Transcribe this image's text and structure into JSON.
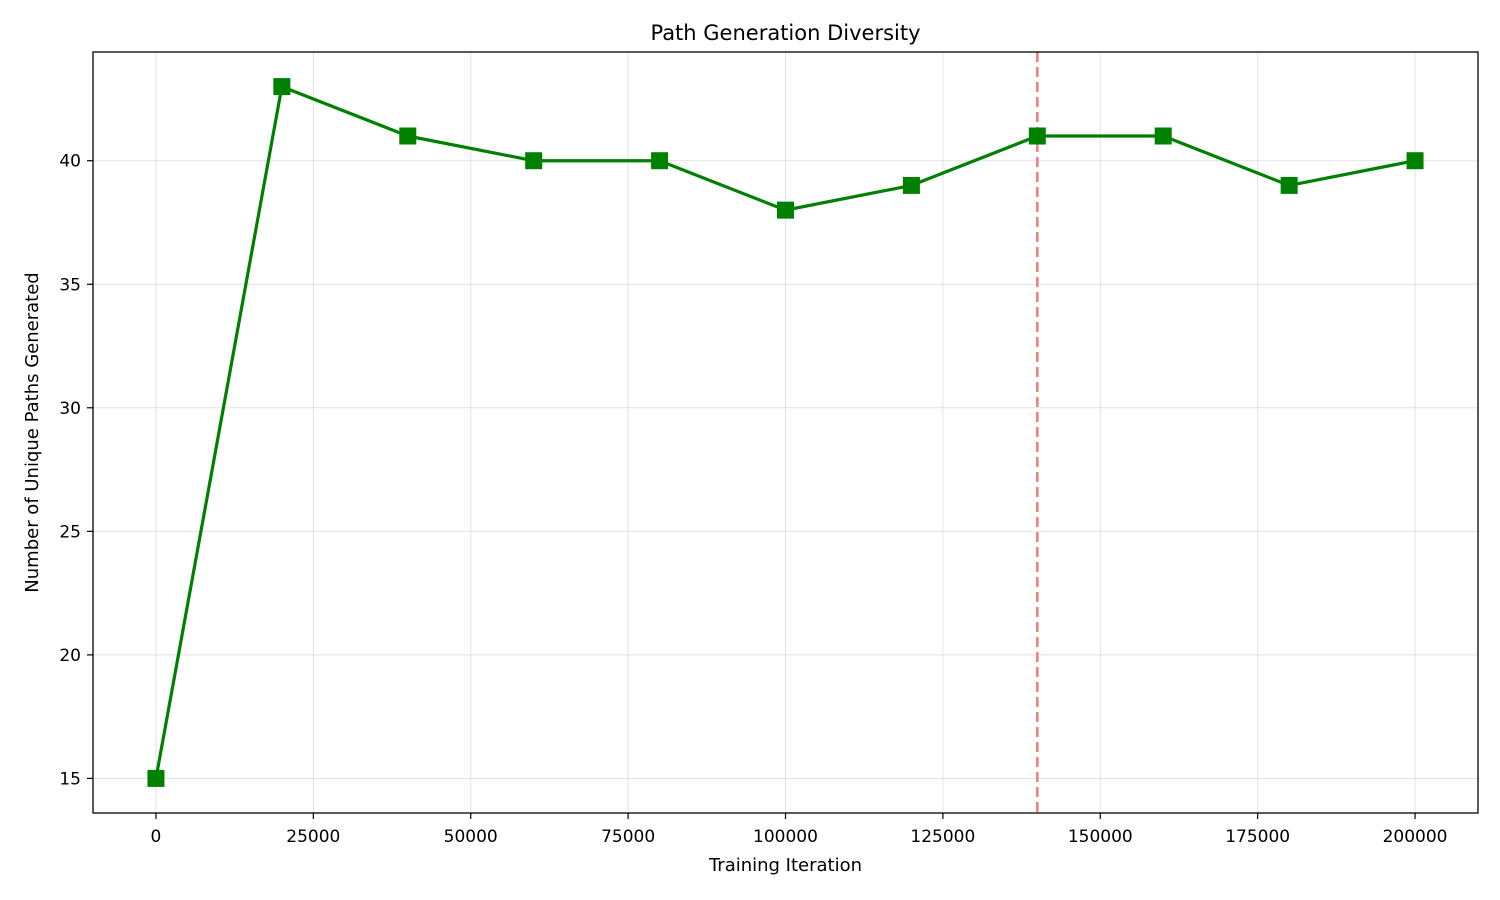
{
  "chart_data": {
    "type": "line",
    "title": "Path Generation Diversity",
    "xlabel": "Training Iteration",
    "ylabel": "Number of Unique Paths Generated",
    "x": [
      0,
      20000,
      40000,
      60000,
      80000,
      100000,
      120000,
      140000,
      160000,
      180000,
      200000
    ],
    "series": [
      {
        "values": [
          15,
          43,
          41,
          40,
          40,
          38,
          39,
          41,
          41,
          39,
          40
        ],
        "color": "#008000",
        "marker": "square"
      }
    ],
    "reference_line": {
      "orientation": "vertical",
      "x": 140000,
      "color": "#f08080",
      "style": "dashed"
    },
    "xlim": [
      -10000,
      210000
    ],
    "ylim": [
      13.6,
      44.4
    ],
    "xticks": [
      0,
      25000,
      50000,
      75000,
      100000,
      125000,
      150000,
      175000,
      200000
    ],
    "xtick_labels": [
      "0",
      "25000",
      "50000",
      "75000",
      "100000",
      "125000",
      "150000",
      "175000",
      "200000"
    ],
    "yticks": [
      15,
      20,
      25,
      30,
      35,
      40
    ],
    "ytick_labels": [
      "15",
      "20",
      "25",
      "30",
      "35",
      "40"
    ],
    "grid": true
  }
}
